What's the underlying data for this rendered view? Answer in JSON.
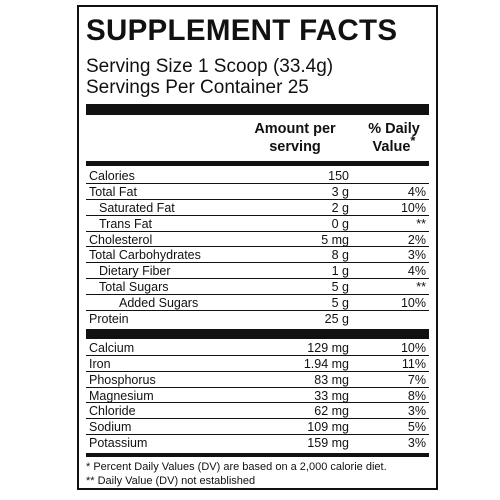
{
  "label": {
    "title": "SUPPLEMENT FACTS",
    "serving_size": "Serving Size 1 Scoop (33.4g)",
    "servings_per_container": "Servings Per Container 25",
    "header": {
      "amount": "Amount per serving",
      "daily_value": "% Daily Value",
      "daily_value_mark": "*"
    },
    "nutrients": [
      {
        "name": "Calories",
        "amount": "150",
        "level": 0
      },
      {
        "name": "Total Fat",
        "amount": "3 g",
        "dv": "4%",
        "level": 0
      },
      {
        "name": "Saturated Fat",
        "amount": "2 g",
        "dv": "10%",
        "level": 1
      },
      {
        "name": "Trans Fat",
        "amount": "0 g",
        "dv": "**",
        "level": 1
      },
      {
        "name": "Cholesterol",
        "amount": "5 mg",
        "dv": "2%",
        "level": 0
      },
      {
        "name": "Total Carbohydrates",
        "amount": "8 g",
        "dv": "3%",
        "level": 0
      },
      {
        "name": "Dietary Fiber",
        "amount": "1 g",
        "dv": "4%",
        "level": 1
      },
      {
        "name": "Total Sugars",
        "amount": "5 g",
        "dv": "**",
        "level": 1
      },
      {
        "name": "Added Sugars",
        "amount": "5 g",
        "dv": "10%",
        "level": 2
      },
      {
        "name": "Protein",
        "amount": "25 g",
        "level": 0
      }
    ],
    "minerals": [
      {
        "name": "Calcium",
        "amount": "129 mg",
        "dv": "10%"
      },
      {
        "name": "Iron",
        "amount": "1.94 mg",
        "dv": "11%"
      },
      {
        "name": "Phosphorus",
        "amount": "83 mg",
        "dv": "7%"
      },
      {
        "name": "Magnesium",
        "amount": "33 mg",
        "dv": "8%"
      },
      {
        "name": "Chloride",
        "amount": "62 mg",
        "dv": "3%"
      },
      {
        "name": "Sodium",
        "amount": "109 mg",
        "dv": "5%"
      },
      {
        "name": "Potassium",
        "amount": "159 mg",
        "dv": "3%"
      }
    ],
    "footnotes": [
      "* Percent Daily Values (DV) are based on a 2,000 calorie diet.",
      "** Daily Value (DV) not established"
    ]
  }
}
